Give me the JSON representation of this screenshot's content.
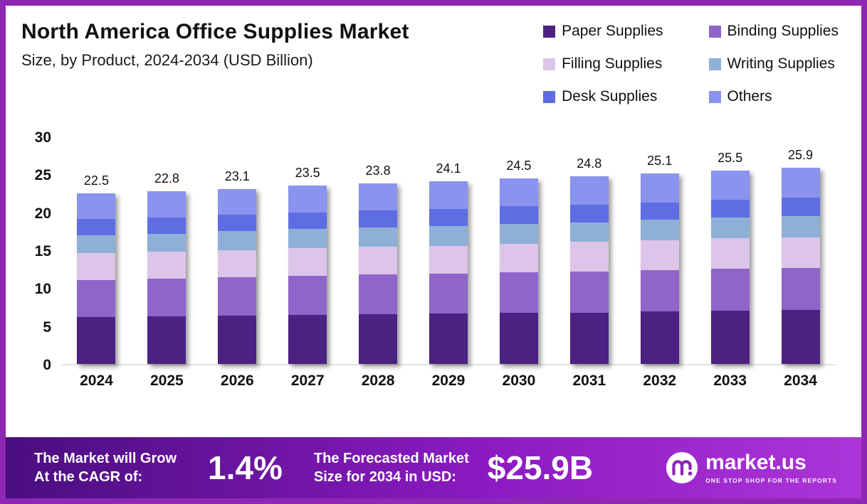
{
  "header": {
    "title": "North America Office Supplies Market",
    "subtitle": "Size, by Product, 2024-2034 (USD Billion)"
  },
  "chart_data": {
    "type": "bar",
    "stacked": true,
    "title": "North America Office Supplies Market Size, by Product, 2024-2034 (USD Billion)",
    "xlabel": "",
    "ylabel": "",
    "ylim": [
      0,
      30
    ],
    "yticks": [
      0,
      5,
      10,
      15,
      20,
      25,
      30
    ],
    "grid": false,
    "legend_position": "top-right",
    "categories": [
      "2024",
      "2025",
      "2026",
      "2027",
      "2028",
      "2029",
      "2030",
      "2031",
      "2032",
      "2033",
      "2034"
    ],
    "totals": [
      22.5,
      22.8,
      23.1,
      23.5,
      23.8,
      24.1,
      24.5,
      24.8,
      25.1,
      25.5,
      25.9
    ],
    "series": [
      {
        "name": "Paper Supplies",
        "color": "#4B2182",
        "values": [
          6.2,
          6.3,
          6.4,
          6.5,
          6.6,
          6.7,
          6.8,
          6.8,
          6.9,
          7.0,
          7.1
        ]
      },
      {
        "name": "Binding Supplies",
        "color": "#9065C9",
        "values": [
          4.9,
          5.0,
          5.0,
          5.1,
          5.2,
          5.2,
          5.3,
          5.4,
          5.5,
          5.6,
          5.6
        ]
      },
      {
        "name": "Filling Supplies",
        "color": "#DCC5E8",
        "values": [
          3.5,
          3.5,
          3.6,
          3.7,
          3.7,
          3.7,
          3.8,
          3.9,
          3.9,
          4.0,
          4.0
        ]
      },
      {
        "name": "Writing Supplies",
        "color": "#8FB0D6",
        "values": [
          2.4,
          2.4,
          2.5,
          2.5,
          2.5,
          2.6,
          2.6,
          2.6,
          2.7,
          2.7,
          2.8
        ]
      },
      {
        "name": "Desk Supplies",
        "color": "#5F6DE3",
        "values": [
          2.1,
          2.1,
          2.2,
          2.2,
          2.2,
          2.2,
          2.3,
          2.3,
          2.3,
          2.4,
          2.4
        ]
      },
      {
        "name": "Others",
        "color": "#8A93ED",
        "values": [
          3.4,
          3.5,
          3.4,
          3.5,
          3.6,
          3.7,
          3.7,
          3.8,
          3.8,
          3.8,
          4.0
        ]
      }
    ]
  },
  "banner": {
    "cagr_label_line1": "The Market will Grow",
    "cagr_label_line2": "At the CAGR of:",
    "cagr_value": "1.4%",
    "forecast_label_line1": "The Forecasted Market",
    "forecast_label_line2": "Size for 2034 in USD:",
    "forecast_value": "$25.9B",
    "logo_text": "market.us",
    "logo_tagline": "ONE STOP SHOP FOR THE REPORTS"
  },
  "colors": {
    "frame": "#8F27B5",
    "banner_gradient_start": "#4A0E7F",
    "banner_gradient_end": "#AC35D8"
  }
}
